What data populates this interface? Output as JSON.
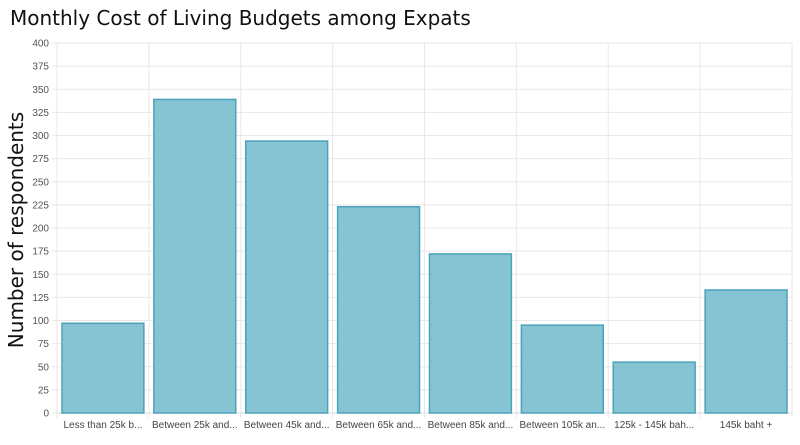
{
  "chart_data": {
    "type": "bar",
    "title": "Monthly Cost of Living Budgets among Expats",
    "xlabel": "",
    "ylabel": "Number of respondents",
    "categories": [
      "Less than 25k b...",
      "Between 25k and...",
      "Between 45k and...",
      "Between 65k and...",
      "Between 85k and...",
      "Between 105k an...",
      "125k - 145k bah...",
      "145k baht +"
    ],
    "values": [
      97,
      339,
      294,
      223,
      172,
      95,
      55,
      133
    ],
    "ylim": [
      0,
      400
    ],
    "yticks": [
      0,
      25,
      50,
      75,
      100,
      125,
      150,
      175,
      200,
      225,
      250,
      275,
      300,
      325,
      350,
      375,
      400
    ],
    "grid": true,
    "colors": {
      "bar_fill": "#86c4d3",
      "bar_stroke": "#4ba3bb",
      "grid": "#e8e8e8"
    }
  }
}
